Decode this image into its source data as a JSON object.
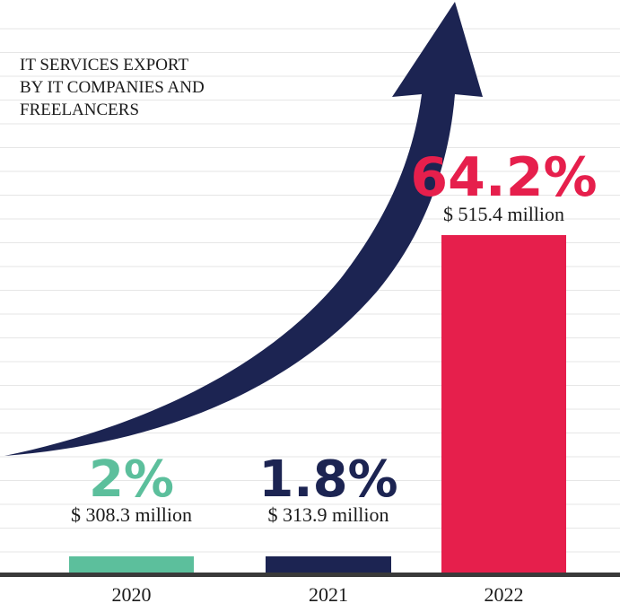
{
  "chart_data": {
    "type": "bar",
    "title": [
      "IT SERVICES EXPORT",
      "BY IT COMPANIES AND",
      "FREELANCERS"
    ],
    "categories": [
      "2020",
      "2021",
      "2022"
    ],
    "values": [
      308.3,
      313.9,
      515.4
    ],
    "value_labels": [
      "$ 308.3 million",
      "$ 313.9 million",
      "$ 515.4 million"
    ],
    "growth_labels": [
      "2%",
      "1.8%",
      "64.2%"
    ],
    "colors": [
      "#5cbf9c",
      "#1c2452",
      "#e61f4c"
    ],
    "arrow_color": "#1c2452",
    "grid": true
  }
}
